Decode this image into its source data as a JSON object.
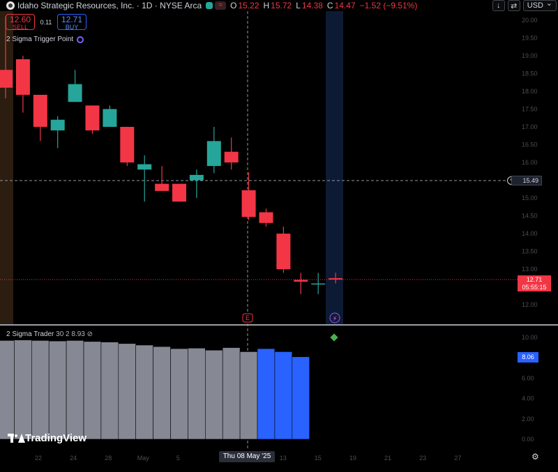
{
  "header": {
    "title": "Idaho Strategic Resources, Inc. · 1D · NYSE Arca",
    "ohlc": [
      {
        "k": "O",
        "v": "15.22"
      },
      {
        "k": "H",
        "v": "15.72"
      },
      {
        "k": "L",
        "v": "14.38"
      },
      {
        "k": "C",
        "v": "14.47"
      }
    ],
    "change": "−1.52 (−9.51%)",
    "currency": "USD",
    "wave_glyph": "≈"
  },
  "trade": {
    "sell_price": "12.60",
    "sell_label": "SELL",
    "spread": "0.11",
    "buy_price": "12.71",
    "buy_label": "BUY"
  },
  "indicators": {
    "top_name": "2 Sigma Trigger Point",
    "bottom_name": "2 Sigma Trader",
    "bottom_params": "30 2",
    "bottom_value": "8.93",
    "bottom_suffix": "⊘"
  },
  "crosshair": {
    "price": "15.49",
    "date": "Thu 08 May '25"
  },
  "last_price": {
    "price": "12.71",
    "countdown": "05:55:15"
  },
  "oscillator_badge": "8.06",
  "logo_text": "TradingView",
  "colors": {
    "up": "#26a69a",
    "down": "#f23645",
    "gray_bar": "#868993",
    "blue_bar": "#2962ff",
    "highlight_band": "#0d1a33",
    "left_band": "#2b1d0f"
  },
  "chart_data": [
    {
      "type": "candlestick",
      "title": "Idaho Strategic Resources, Inc. · 1D · NYSE Arca",
      "y_ticks": [
        "12.00",
        "12.50",
        "13.00",
        "13.50",
        "14.00",
        "14.50",
        "15.00",
        "15.50",
        "16.00",
        "16.50",
        "17.00",
        "17.50",
        "18.00",
        "18.50",
        "19.00",
        "19.50",
        "20.00"
      ],
      "y_range": [
        11.5,
        20.2
      ],
      "candles": [
        {
          "o": 18.6,
          "h": 20.1,
          "l": 17.8,
          "c": 18.1
        },
        {
          "o": 18.9,
          "h": 19.0,
          "l": 17.4,
          "c": 17.9
        },
        {
          "o": 17.9,
          "h": 17.9,
          "l": 16.6,
          "c": 17.0
        },
        {
          "o": 16.9,
          "h": 17.3,
          "l": 16.4,
          "c": 17.2
        },
        {
          "o": 17.7,
          "h": 18.6,
          "l": 17.7,
          "c": 18.2
        },
        {
          "o": 17.6,
          "h": 17.6,
          "l": 16.8,
          "c": 16.9
        },
        {
          "o": 17.0,
          "h": 17.6,
          "l": 17.0,
          "c": 17.5
        },
        {
          "o": 17.0,
          "h": 17.0,
          "l": 15.9,
          "c": 16.0
        },
        {
          "o": 15.8,
          "h": 16.2,
          "l": 14.9,
          "c": 15.95
        },
        {
          "o": 15.4,
          "h": 15.9,
          "l": 15.2,
          "c": 15.2
        },
        {
          "o": 15.4,
          "h": 15.4,
          "l": 14.9,
          "c": 14.9
        },
        {
          "o": 15.5,
          "h": 15.8,
          "l": 15.0,
          "c": 15.65
        },
        {
          "o": 15.9,
          "h": 17.0,
          "l": 15.7,
          "c": 16.6
        },
        {
          "o": 16.3,
          "h": 16.7,
          "l": 15.8,
          "c": 16.0
        },
        {
          "o": 15.22,
          "h": 15.72,
          "l": 14.38,
          "c": 14.47
        },
        {
          "o": 14.6,
          "h": 14.7,
          "l": 14.2,
          "c": 14.3
        },
        {
          "o": 14.0,
          "h": 14.2,
          "l": 12.9,
          "c": 13.0
        },
        {
          "o": 12.7,
          "h": 12.9,
          "l": 12.3,
          "c": 12.65
        },
        {
          "o": 12.6,
          "h": 12.9,
          "l": 12.3,
          "c": 12.6
        },
        {
          "o": 12.75,
          "h": 12.9,
          "l": 12.6,
          "c": 12.71
        }
      ]
    },
    {
      "type": "bar",
      "title": "2 Sigma Trader",
      "y_ticks": [
        "0.00",
        "2.00",
        "4.00",
        "6.00",
        "8.00",
        "10.00"
      ],
      "y_range": [
        -0.6,
        10.5
      ],
      "values": [
        9.7,
        9.75,
        9.7,
        9.65,
        9.7,
        9.6,
        9.55,
        9.4,
        9.25,
        9.1,
        8.9,
        8.95,
        8.75,
        9.0,
        8.6,
        8.9,
        8.6,
        8.1
      ],
      "colors": [
        "gray",
        "gray",
        "gray",
        "gray",
        "gray",
        "gray",
        "gray",
        "gray",
        "gray",
        "gray",
        "gray",
        "gray",
        "gray",
        "gray",
        "gray",
        "blue",
        "blue",
        "blue"
      ]
    }
  ],
  "x_ticks": [
    "22",
    "24",
    "28",
    "May",
    "5",
    "",
    "",
    "13",
    "15",
    "19",
    "21",
    "23",
    "27"
  ]
}
